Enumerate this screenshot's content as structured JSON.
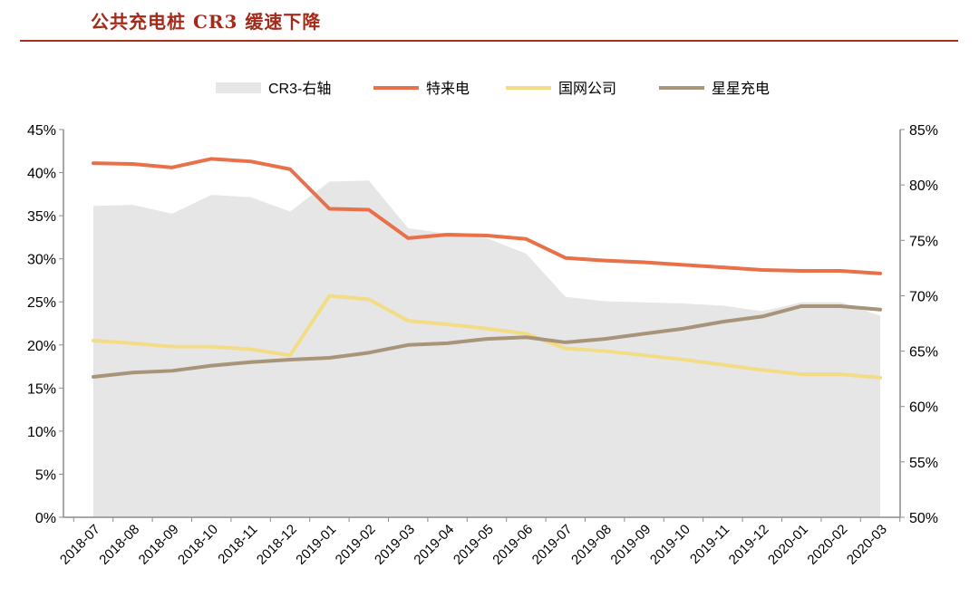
{
  "page_title": "公共充电桩 CR3 缓速下降",
  "chart_data": {
    "type": "line",
    "title": "公共充电桩 CR3 缓速下降",
    "categories": [
      "2018-07",
      "2018-08",
      "2018-09",
      "2018-10",
      "2018-11",
      "2018-12",
      "2019-01",
      "2019-02",
      "2019-03",
      "2019-04",
      "2019-05",
      "2019-06",
      "2019-07",
      "2019-08",
      "2019-09",
      "2019-10",
      "2019-11",
      "2019-12",
      "2020-01",
      "2020-02",
      "2020-03"
    ],
    "left_axis": {
      "ylim": [
        0,
        45
      ],
      "ticks": [
        "0%",
        "5%",
        "10%",
        "15%",
        "20%",
        "25%",
        "30%",
        "35%",
        "40%",
        "45%"
      ]
    },
    "right_axis": {
      "ylim": [
        50,
        85
      ],
      "ticks": [
        "50%",
        "55%",
        "60%",
        "65%",
        "70%",
        "75%",
        "80%",
        "85%"
      ]
    },
    "area_series": {
      "name": "CR3-右轴",
      "axis": "right",
      "color": "#e6e6e6",
      "values": [
        78.1,
        78.2,
        77.4,
        79.1,
        78.9,
        77.6,
        80.3,
        80.4,
        76.1,
        75.6,
        75.2,
        73.8,
        69.9,
        69.5,
        69.4,
        69.3,
        69.1,
        68.6,
        69.4,
        69.4,
        68.2
      ]
    },
    "series": [
      {
        "name": "特来电",
        "axis": "left",
        "color": "#e8714a",
        "values": [
          41.1,
          41.0,
          40.6,
          41.6,
          41.3,
          40.4,
          35.8,
          35.7,
          32.4,
          32.8,
          32.7,
          32.3,
          30.1,
          29.8,
          29.6,
          29.3,
          29.0,
          28.7,
          28.6,
          28.6,
          28.3
        ]
      },
      {
        "name": "国网公司",
        "axis": "left",
        "color": "#f2dc86",
        "values": [
          20.5,
          20.2,
          19.8,
          19.8,
          19.5,
          18.8,
          25.7,
          25.3,
          22.8,
          22.4,
          21.9,
          21.3,
          19.6,
          19.3,
          18.8,
          18.3,
          17.7,
          17.1,
          16.6,
          16.6,
          16.2
        ]
      },
      {
        "name": "星星充电",
        "axis": "left",
        "color": "#a89478",
        "values": [
          16.3,
          16.8,
          17.0,
          17.6,
          18.0,
          18.3,
          18.5,
          19.1,
          20.0,
          20.2,
          20.7,
          20.9,
          20.3,
          20.7,
          21.3,
          21.9,
          22.7,
          23.3,
          24.5,
          24.5,
          24.1
        ]
      }
    ]
  }
}
